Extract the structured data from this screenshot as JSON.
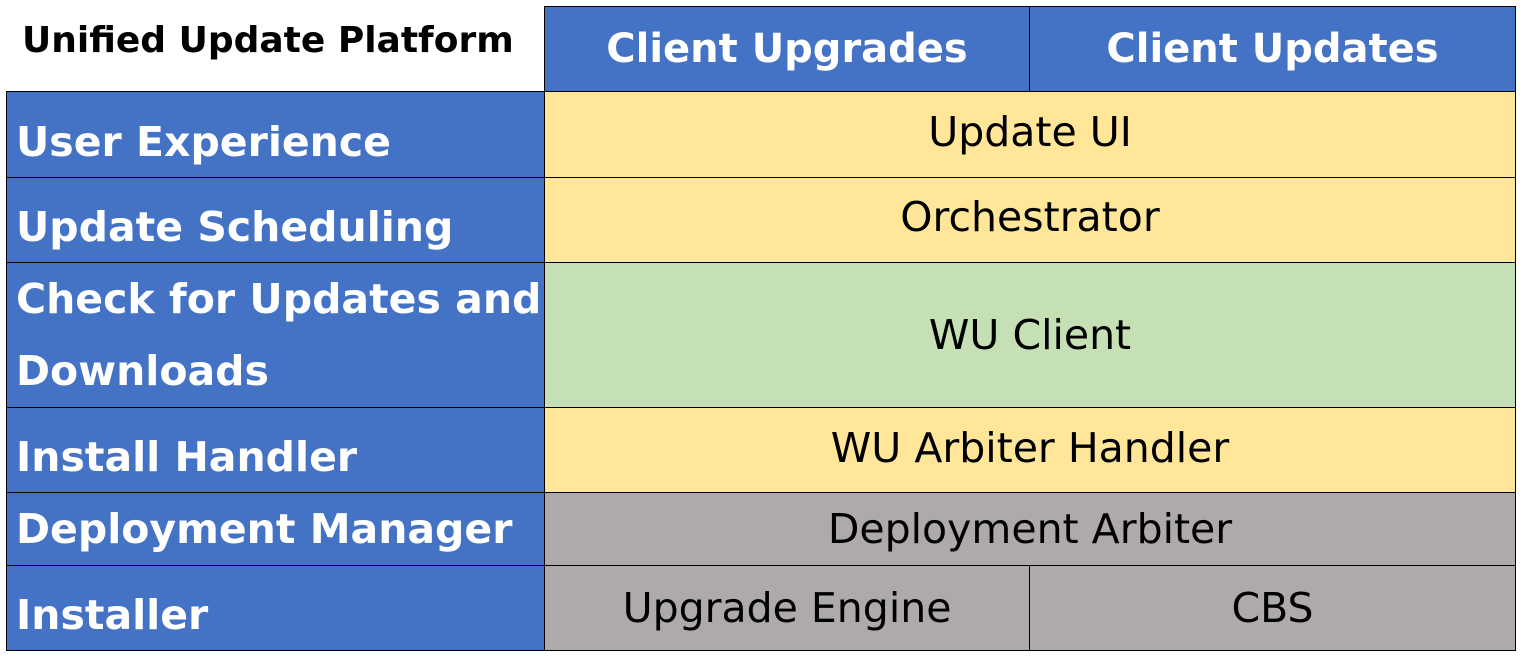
{
  "title": "Unified Update Platform",
  "columns": [
    "Client Upgrades",
    "Client Updates"
  ],
  "rows": [
    {
      "label": "User Experience",
      "cells": [
        "Update UI"
      ],
      "color": "#FFE699"
    },
    {
      "label": "Update Scheduling",
      "cells": [
        "Orchestrator"
      ],
      "color": "#FFE699"
    },
    {
      "label": "Check for Updates and Downloads",
      "cells": [
        "WU Client"
      ],
      "color": "#C5E0B4"
    },
    {
      "label": "Install Handler",
      "cells": [
        "WU Arbiter Handler"
      ],
      "color": "#FFE699"
    },
    {
      "label": "Deployment Manager",
      "cells": [
        "Deployment Arbiter"
      ],
      "color": "#AEAAAA"
    },
    {
      "label": "Installer",
      "cells": [
        "Upgrade Engine",
        "CBS"
      ],
      "color": "#AEAAAA"
    }
  ],
  "colors": {
    "header": "#4472C4"
  }
}
